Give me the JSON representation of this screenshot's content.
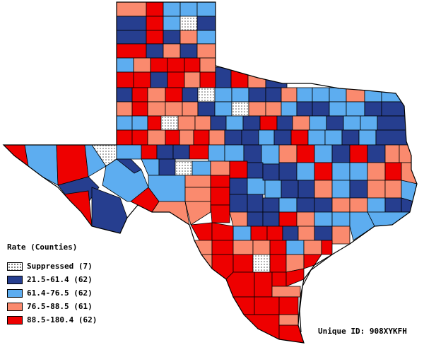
{
  "legend": {
    "title": "Rate (Counties)",
    "items": [
      {
        "label": "Suppressed (7)",
        "color": "#ffffff",
        "pattern": "dotted"
      },
      {
        "label": "21.5-61.4 (62)",
        "color": "#263e8f"
      },
      {
        "label": "61.4-76.5 (62)",
        "color": "#5dadf0"
      },
      {
        "label": "76.5-88.5 (61)",
        "color": "#fa8a6e"
      },
      {
        "label": "88.5-180.4 (62)",
        "color": "#ee0000"
      }
    ]
  },
  "unique_id": "Unique ID: 908XYKFH",
  "palette": {
    "suppressed": "#ffffff",
    "low": "#263e8f",
    "mid_low": "#5dadf0",
    "mid_high": "#fa8a6e",
    "high": "#ee0000"
  }
}
